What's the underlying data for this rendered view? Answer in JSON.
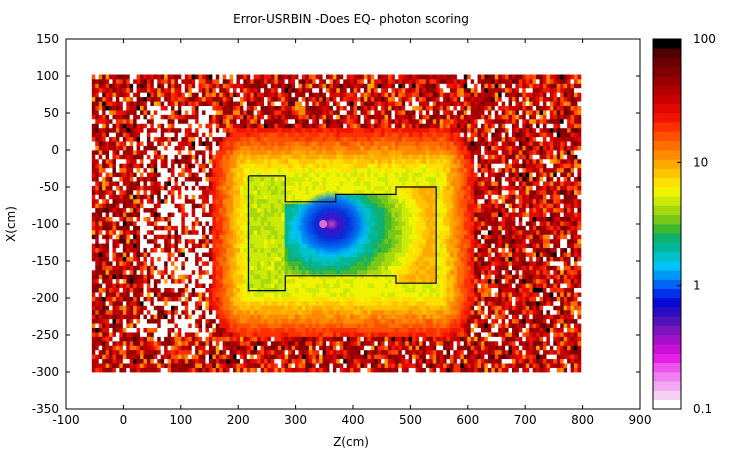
{
  "chart_data": {
    "type": "heatmap",
    "title": "Error-USRBIN -Does EQ- photon scoring",
    "xlabel": "Z(cm)",
    "ylabel": "X(cm)",
    "xlim": [
      -100,
      900
    ],
    "ylim": [
      -350,
      150
    ],
    "x_ticks": [
      -100,
      0,
      100,
      200,
      300,
      400,
      500,
      600,
      700,
      800,
      900
    ],
    "y_ticks": [
      150,
      100,
      50,
      0,
      -50,
      -100,
      -150,
      -200,
      -250,
      -300,
      -350
    ],
    "data_extent": {
      "x": [
        -55,
        795
      ],
      "y": [
        -300,
        100
      ]
    },
    "colorbar": {
      "scale": "log",
      "range": [
        0.1,
        100
      ],
      "ticks": [
        "100",
        "10",
        "1",
        "0.1"
      ],
      "tick_values": [
        100,
        10,
        1,
        0.1
      ],
      "colors": [
        "#ffffff",
        "#f4d0f4",
        "#f2a8f2",
        "#ef7ff0",
        "#ec52ee",
        "#e41fe8",
        "#c80fd8",
        "#a310c9",
        "#7d15bd",
        "#5214b8",
        "#2a0dc0",
        "#0a0ad8",
        "#0030ea",
        "#0064f4",
        "#0098f8",
        "#00c4f6",
        "#00c0c8",
        "#00b898",
        "#10b070",
        "#40b830",
        "#78c818",
        "#a6d810",
        "#ccea08",
        "#f0f400",
        "#ffe000",
        "#ffc400",
        "#ffa800",
        "#ff8c00",
        "#ff6e00",
        "#ff5000",
        "#ff3000",
        "#f01500",
        "#e00800",
        "#c80000",
        "#b00000",
        "#980000",
        "#800000",
        "#6a0000",
        "#500000",
        "#000000"
      ]
    },
    "outline_polygons": [
      [
        [
          218,
          -35
        ],
        [
          282,
          -35
        ],
        [
          282,
          -70
        ],
        [
          370,
          -70
        ],
        [
          370,
          -60
        ],
        [
          420,
          -60
        ],
        [
          420,
          -60
        ],
        [
          475,
          -60
        ],
        [
          475,
          -50
        ],
        [
          545,
          -50
        ],
        [
          545,
          -180
        ],
        [
          475,
          -180
        ],
        [
          475,
          -170
        ],
        [
          282,
          -170
        ],
        [
          282,
          -190
        ],
        [
          218,
          -190
        ],
        [
          218,
          -35
        ]
      ]
    ],
    "hotspot": {
      "x": 348,
      "y": -100,
      "value": 0.35
    },
    "peak_region": {
      "x": [
        300,
        430
      ],
      "y": [
        -150,
        -60
      ],
      "value_range": [
        0.5,
        2
      ]
    },
    "background_value_range": [
      10,
      60
    ]
  }
}
